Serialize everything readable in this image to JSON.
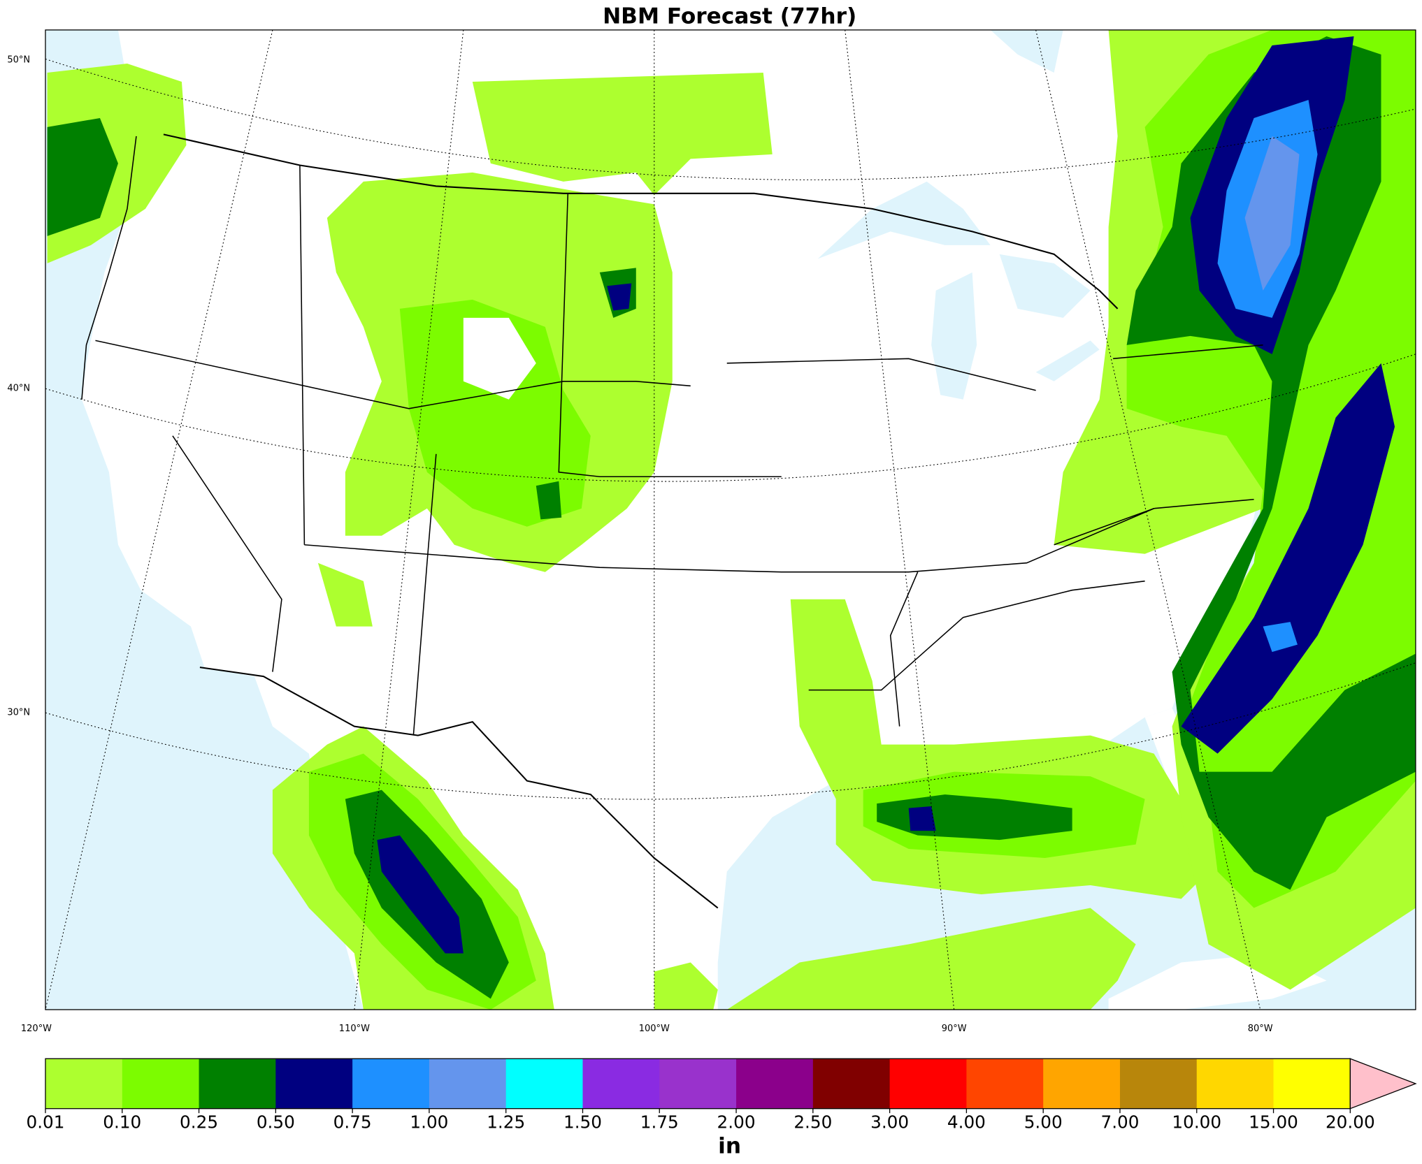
{
  "title": "NBM Forecast (77hr)",
  "map": {
    "lat_labels": [
      "50°N",
      "40°N",
      "30°N"
    ],
    "lon_labels": [
      "120°W",
      "110°W",
      "100°W",
      "90°W",
      "80°W"
    ]
  },
  "colorbar": {
    "levels": [
      {
        "value": 0.01,
        "label": "0.01"
      },
      {
        "value": 0.1,
        "label": "0.10"
      },
      {
        "value": 0.25,
        "label": "0.25"
      },
      {
        "value": 0.5,
        "label": "0.50"
      },
      {
        "value": 0.75,
        "label": "0.75"
      },
      {
        "value": 1,
        "label": "1.00"
      },
      {
        "value": 1.25,
        "label": "1.25"
      },
      {
        "value": 1.5,
        "label": "1.50"
      },
      {
        "value": 1.75,
        "label": "1.75"
      },
      {
        "value": 2,
        "label": "2.00"
      },
      {
        "value": 2.5,
        "label": "2.50"
      },
      {
        "value": 3,
        "label": "3.00"
      },
      {
        "value": 4,
        "label": "4.00"
      },
      {
        "value": 5,
        "label": "5.00"
      },
      {
        "value": 7,
        "label": "7.00"
      },
      {
        "value": 10,
        "label": "10.00"
      },
      {
        "value": 15,
        "label": "15.00"
      },
      {
        "value": 20,
        "label": "20.00"
      }
    ],
    "colors": [
      "#adff2f",
      "#7cfc00",
      "#008000",
      "#000080",
      "#1e90ff",
      "#6495ed",
      "#00ffff",
      "#8a2be2",
      "#9932cc",
      "#8b008b",
      "#800000",
      "#ff0000",
      "#ff4500",
      "#ffa500",
      "#b8860b",
      "#ffd700",
      "#ffff00"
    ],
    "extend_color": "#ffc0cb",
    "unit": "in"
  }
}
